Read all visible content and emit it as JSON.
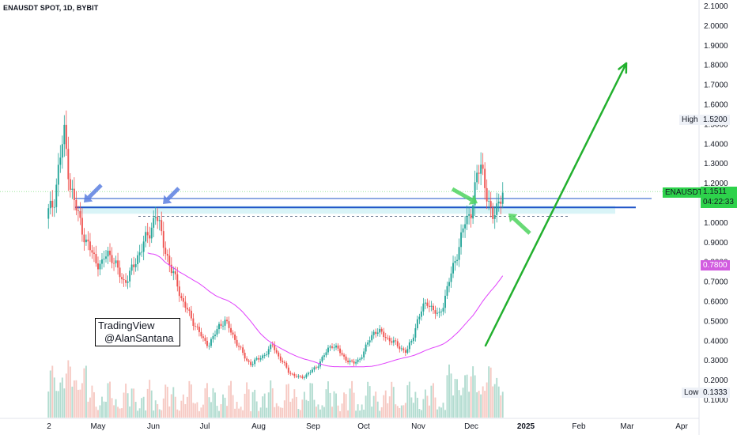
{
  "title": "ENAUSDT SPOT, 1D, BYBIT",
  "watermark": {
    "line1": "TradingView",
    "line2": "@AlanSantana"
  },
  "price_axis": {
    "ticks": [
      "2.1000",
      "2.0000",
      "1.9000",
      "1.8000",
      "1.7000",
      "1.6000",
      "1.5000",
      "1.4000",
      "1.3000",
      "1.2000",
      "1.1000",
      "1.0000",
      "0.9000",
      "0.8000",
      "0.7000",
      "0.6000",
      "0.5000",
      "0.4000",
      "0.3000",
      "0.2000",
      "0.1000"
    ]
  },
  "time_axis": {
    "labels": [
      "2",
      "May",
      "Jun",
      "Jul",
      "Aug",
      "Sep",
      "Oct",
      "Nov",
      "Dec",
      "2025",
      "Feb",
      "Mar",
      "Apr"
    ]
  },
  "tags": {
    "high_label": "High",
    "high_value": "1.5200",
    "symbol": "ENAUSDT",
    "last_price": "1.1511",
    "countdown": "04:22:33",
    "ma_value": "0.7800",
    "low_label": "Low",
    "low_value": "0.1333"
  },
  "colors": {
    "up": "#26a69a",
    "down": "#ef5350",
    "ma": "#e040fb",
    "support": "#1e53c7",
    "arrow_green": "#22b02e",
    "arrow_blue": "#5b7fe0",
    "price_tag": "#2dd24b",
    "ma_tag": "#d25ce0"
  },
  "chart_data": {
    "type": "candlestick",
    "title": "ENAUSDT SPOT, 1D, BYBIT",
    "ylim": [
      0.05,
      2.15
    ],
    "y_ticks": [
      2.1,
      2.0,
      1.9,
      1.8,
      1.7,
      1.6,
      1.5,
      1.4,
      1.3,
      1.2,
      1.1,
      1.0,
      0.9,
      0.8,
      0.7,
      0.6,
      0.5,
      0.4,
      0.3,
      0.2,
      0.1
    ],
    "x_labels": [
      "2",
      "May",
      "Jun",
      "Jul",
      "Aug",
      "Sep",
      "Oct",
      "Nov",
      "Dec",
      "2025",
      "Feb",
      "Mar",
      "Apr"
    ],
    "close_path": [
      1.05,
      1.1,
      1.3,
      1.45,
      1.2,
      1.08,
      1.0,
      0.9,
      0.85,
      0.8,
      0.78,
      0.85,
      0.82,
      0.75,
      0.7,
      0.72,
      0.78,
      0.85,
      0.9,
      0.95,
      1.05,
      0.95,
      0.85,
      0.75,
      0.7,
      0.6,
      0.55,
      0.5,
      0.45,
      0.4,
      0.38,
      0.42,
      0.48,
      0.5,
      0.45,
      0.4,
      0.35,
      0.3,
      0.28,
      0.3,
      0.32,
      0.34,
      0.38,
      0.32,
      0.28,
      0.24,
      0.22,
      0.21,
      0.22,
      0.24,
      0.26,
      0.3,
      0.34,
      0.38,
      0.36,
      0.32,
      0.3,
      0.28,
      0.3,
      0.34,
      0.4,
      0.45,
      0.44,
      0.42,
      0.4,
      0.38,
      0.36,
      0.34,
      0.4,
      0.5,
      0.56,
      0.6,
      0.55,
      0.52,
      0.6,
      0.7,
      0.8,
      0.9,
      1.0,
      1.05,
      1.2,
      1.3,
      1.15,
      1.0,
      1.1,
      1.15
    ],
    "last_price": 1.1511,
    "high": 1.52,
    "low": 0.1333,
    "moving_average_last": 0.78,
    "support_line": 1.075,
    "resistance_line": 1.12,
    "dashed_level": 1.03,
    "projection_arrow": {
      "from": 0.36,
      "to": 1.8
    }
  }
}
